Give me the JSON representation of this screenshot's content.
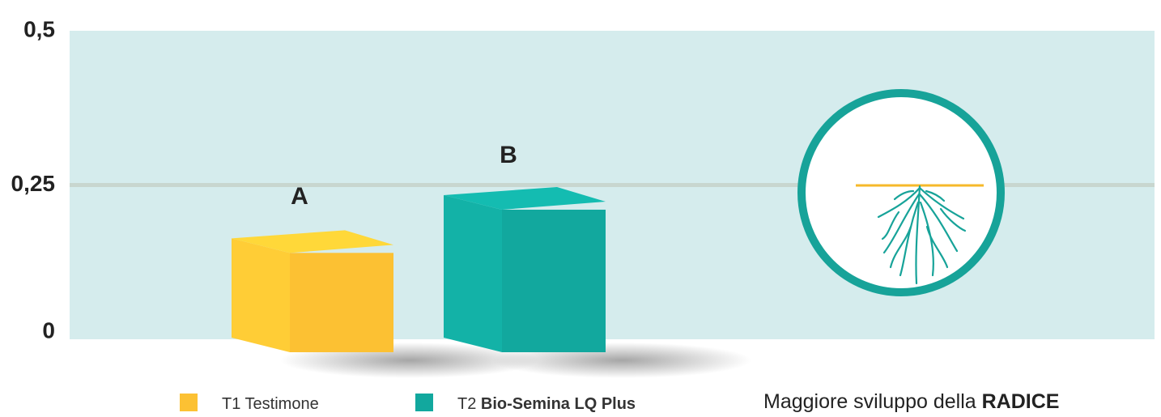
{
  "chart_data": {
    "type": "bar",
    "ylim": [
      0,
      0.5
    ],
    "yticks": [
      {
        "value": 0,
        "label": "0"
      },
      {
        "value": 0.25,
        "label": "0,25"
      },
      {
        "value": 0.5,
        "label": "0,5"
      }
    ],
    "grid": true,
    "series": [
      {
        "code": "T1",
        "name": "Testimone",
        "color": "#fcc133",
        "values": [
          0.14
        ],
        "letter": "A"
      },
      {
        "code": "T2",
        "name": "Bio-Semina LQ Plus",
        "color": "#12a89e",
        "values": [
          0.21
        ],
        "letter": "B"
      }
    ],
    "caption": {
      "text": "Maggiore sviluppo della",
      "emphasis": "RADICE"
    }
  }
}
